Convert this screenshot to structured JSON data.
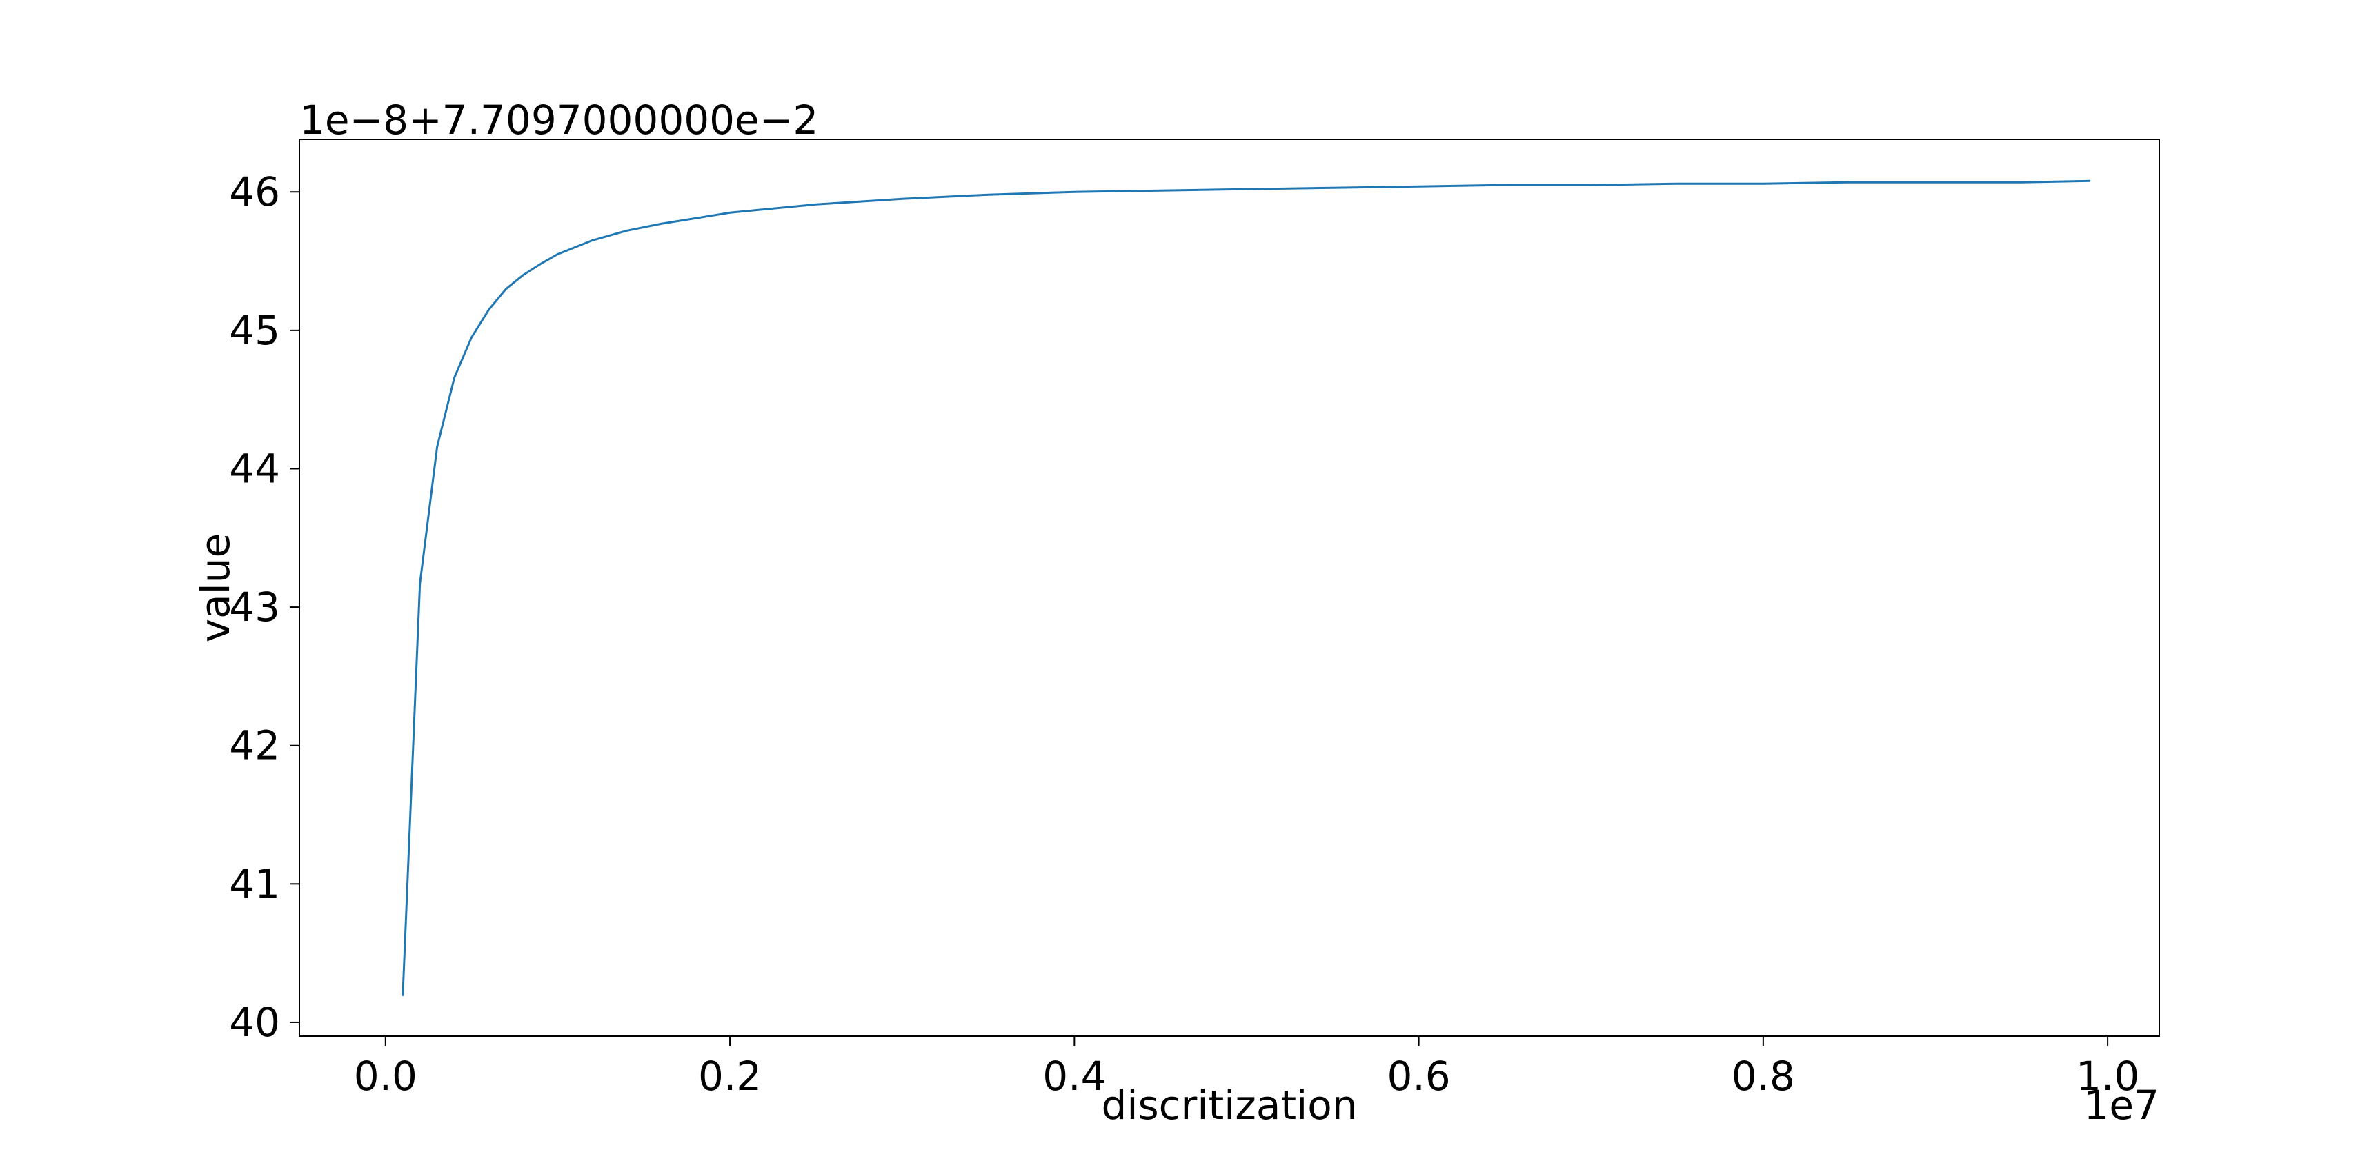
{
  "chart_data": {
    "type": "line",
    "xlabel": "discritization",
    "ylabel": "value",
    "x_multiplier_label": "1e7",
    "y_offset_label": "1e−8+7.7097000000e−2",
    "xlim": [
      -0.05,
      1.03
    ],
    "ylim": [
      39.9,
      46.38
    ],
    "x_ticks": [
      0.0,
      0.2,
      0.4,
      0.6,
      0.8,
      1.0
    ],
    "x_tick_labels": [
      "0.0",
      "0.2",
      "0.4",
      "0.6",
      "0.8",
      "1.0"
    ],
    "y_ticks": [
      40,
      41,
      42,
      43,
      44,
      45,
      46
    ],
    "y_tick_labels": [
      "40",
      "41",
      "42",
      "43",
      "44",
      "45",
      "46"
    ],
    "grid": false,
    "line_color": "#1f77b4",
    "series": [
      {
        "x": [
          0.01,
          0.02,
          0.03,
          0.04,
          0.05,
          0.06,
          0.07,
          0.08,
          0.09,
          0.1,
          0.12,
          0.14,
          0.16,
          0.18,
          0.2,
          0.25,
          0.3,
          0.35,
          0.4,
          0.45,
          0.5,
          0.55,
          0.6,
          0.65,
          0.7,
          0.75,
          0.8,
          0.85,
          0.9,
          0.95,
          0.99
        ],
        "y": [
          40.19,
          43.17,
          44.16,
          44.66,
          44.95,
          45.15,
          45.3,
          45.4,
          45.48,
          45.55,
          45.65,
          45.72,
          45.77,
          45.81,
          45.85,
          45.91,
          45.95,
          45.98,
          46.0,
          46.01,
          46.02,
          46.03,
          46.04,
          46.05,
          46.05,
          46.06,
          46.06,
          46.07,
          46.07,
          46.07,
          46.08
        ]
      }
    ]
  }
}
